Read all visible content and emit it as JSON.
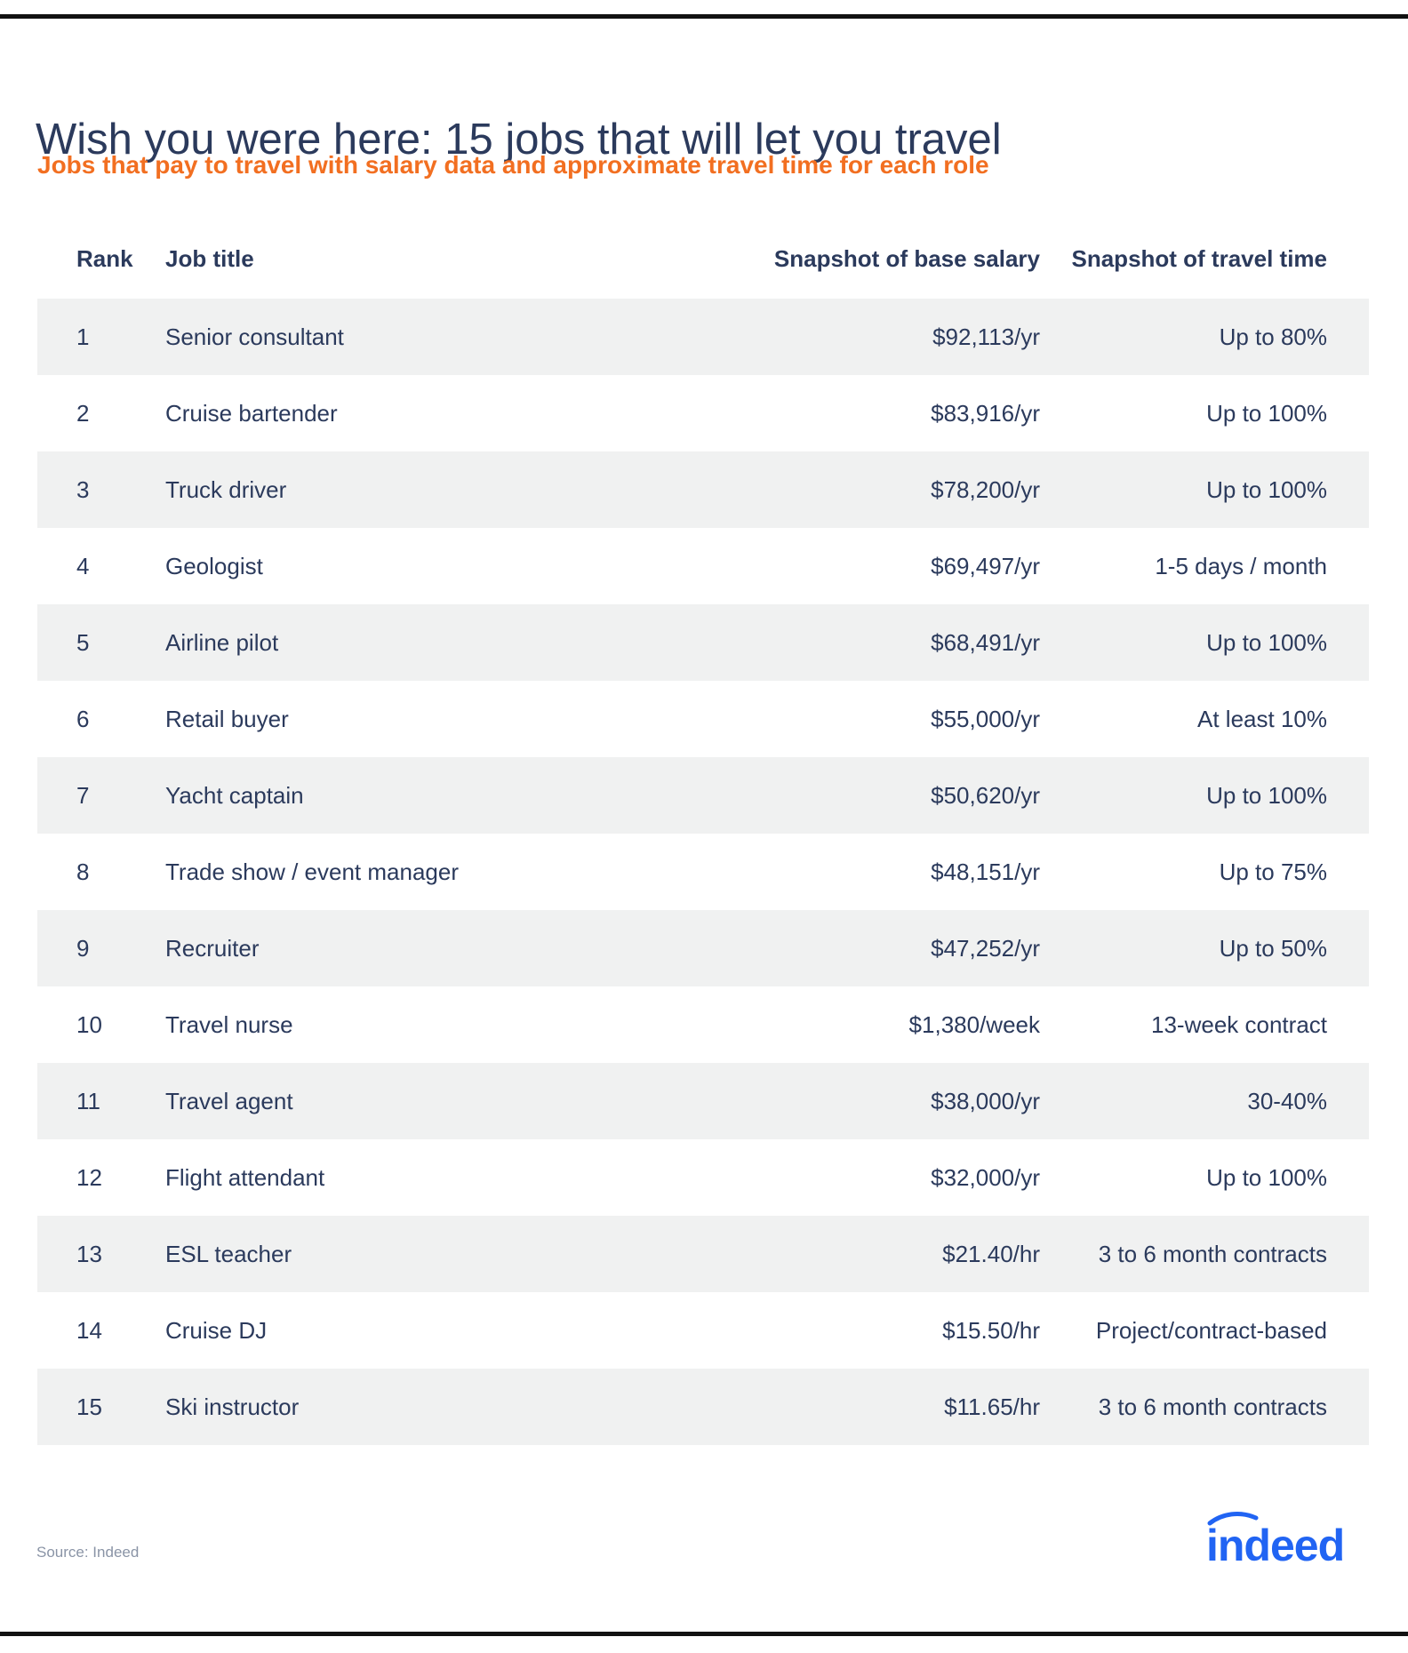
{
  "header": {
    "title": "Wish you were here: 15 jobs that will let you travel",
    "subtitle": "Jobs that pay to travel with salary data and approximate travel time for each role"
  },
  "table": {
    "columns": [
      "Rank",
      "Job title",
      "Snapshot of base salary",
      "Snapshot of travel time"
    ],
    "rows": [
      {
        "rank": "1",
        "title": "Senior consultant",
        "salary": "$92,113/yr",
        "travel": "Up to 80%"
      },
      {
        "rank": "2",
        "title": "Cruise bartender",
        "salary": "$83,916/yr",
        "travel": "Up to 100%"
      },
      {
        "rank": "3",
        "title": "Truck driver",
        "salary": "$78,200/yr",
        "travel": "Up to 100%"
      },
      {
        "rank": "4",
        "title": "Geologist",
        "salary": "$69,497/yr",
        "travel": "1-5 days / month"
      },
      {
        "rank": "5",
        "title": "Airline pilot",
        "salary": "$68,491/yr",
        "travel": "Up to 100%"
      },
      {
        "rank": "6",
        "title": "Retail buyer",
        "salary": "$55,000/yr",
        "travel": "At least 10%"
      },
      {
        "rank": "7",
        "title": "Yacht captain",
        "salary": "$50,620/yr",
        "travel": "Up to 100%"
      },
      {
        "rank": "8",
        "title": "Trade show / event manager",
        "salary": "$48,151/yr",
        "travel": "Up to 75%"
      },
      {
        "rank": "9",
        "title": "Recruiter",
        "salary": "$47,252/yr",
        "travel": "Up to 50%"
      },
      {
        "rank": "10",
        "title": "Travel nurse",
        "salary": "$1,380/week",
        "travel": "13-week contract"
      },
      {
        "rank": "11",
        "title": "Travel agent",
        "salary": "$38,000/yr",
        "travel": "30-40%"
      },
      {
        "rank": "12",
        "title": "Flight attendant",
        "salary": "$32,000/yr",
        "travel": "Up to 100%"
      },
      {
        "rank": "13",
        "title": "ESL teacher",
        "salary": "$21.40/hr",
        "travel": "3 to 6 month contracts"
      },
      {
        "rank": "14",
        "title": "Cruise DJ",
        "salary": "$15.50/hr",
        "travel": "Project/contract-based"
      },
      {
        "rank": "15",
        "title": "Ski instructor",
        "salary": "$11.65/hr",
        "travel": "3 to 6 month contracts"
      }
    ]
  },
  "footer": {
    "source": "Source: Indeed",
    "logo_text": "indeed"
  },
  "colors": {
    "navy": "#2b3a5c",
    "orange": "#f26f21",
    "row_shade": "#f0f1f1",
    "brand_blue": "#2164f3"
  }
}
